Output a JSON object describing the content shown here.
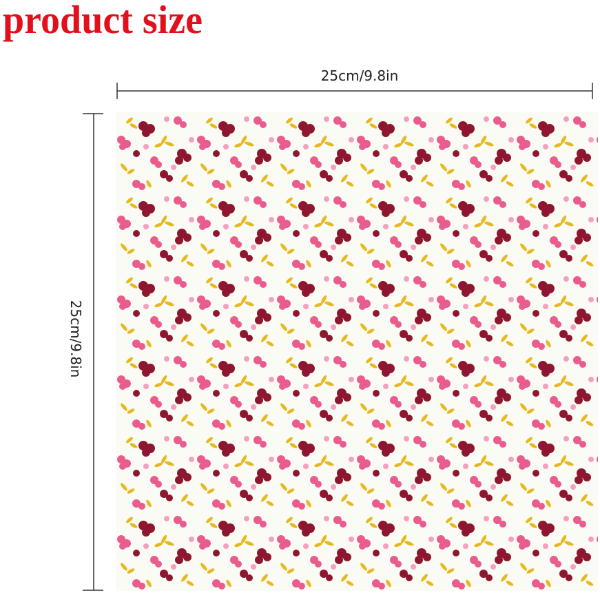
{
  "header": {
    "title": "product size"
  },
  "dimensions": {
    "width": {
      "label": "25cm/9.8in"
    },
    "height": {
      "label": "25cm/9.8in"
    }
  }
}
